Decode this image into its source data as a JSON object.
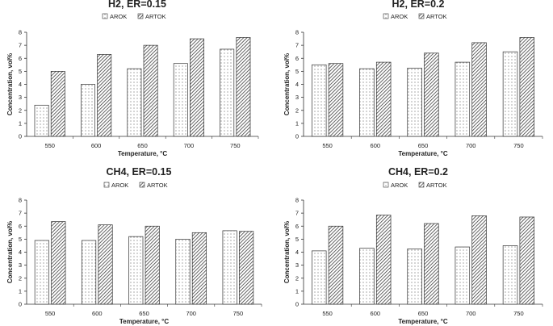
{
  "chart_data": [
    {
      "type": "bar",
      "title": "H2, ER=0.15",
      "categories": [
        "550",
        "600",
        "650",
        "700",
        "750"
      ],
      "series": [
        {
          "name": "AROK",
          "values": [
            2.4,
            4.0,
            5.2,
            5.6,
            6.7
          ],
          "pattern": "dots"
        },
        {
          "name": "ARTOK",
          "values": [
            5.0,
            6.3,
            7.0,
            7.5,
            7.6
          ],
          "pattern": "hatch"
        }
      ],
      "xlabel": "Temperature, °C",
      "ylabel": "Concentration, vol%",
      "ylim": [
        0,
        8
      ],
      "yticks": [
        "0",
        "1",
        "2",
        "3",
        "4",
        "5",
        "6",
        "7",
        "8"
      ],
      "legend": "top-center",
      "grid": false
    },
    {
      "type": "bar",
      "title": "H2, ER=0.2",
      "categories": [
        "550",
        "600",
        "650",
        "700",
        "750"
      ],
      "series": [
        {
          "name": "AROK",
          "values": [
            5.5,
            5.2,
            5.25,
            5.7,
            6.5
          ],
          "pattern": "dots"
        },
        {
          "name": "ARTOK",
          "values": [
            5.6,
            5.7,
            6.4,
            7.2,
            7.6
          ],
          "pattern": "hatch"
        }
      ],
      "xlabel": "Temperature, °C",
      "ylabel": "Concentration, vol%",
      "ylim": [
        0,
        8
      ],
      "yticks": [
        "0",
        "1",
        "2",
        "3",
        "4",
        "5",
        "6",
        "7",
        "8"
      ],
      "legend": "top-center",
      "grid": false
    },
    {
      "type": "bar",
      "title": "CH4, ER=0.15",
      "categories": [
        "550",
        "600",
        "650",
        "700",
        "750"
      ],
      "series": [
        {
          "name": "AROK",
          "values": [
            4.9,
            4.9,
            5.2,
            5.0,
            5.65
          ],
          "pattern": "dots"
        },
        {
          "name": "ARTOK",
          "values": [
            6.35,
            6.1,
            6.0,
            5.5,
            5.6
          ],
          "pattern": "hatch"
        }
      ],
      "xlabel": "Temperature, °C",
      "ylabel": "Concentration, vol%",
      "ylim": [
        0,
        8
      ],
      "yticks": [
        "0",
        "1",
        "2",
        "3",
        "4",
        "5",
        "6",
        "7",
        "8"
      ],
      "legend": "top-center",
      "grid": false
    },
    {
      "type": "bar",
      "title": "CH4, ER=0.2",
      "categories": [
        "550",
        "600",
        "650",
        "700",
        "750"
      ],
      "series": [
        {
          "name": "AROK",
          "values": [
            4.1,
            4.3,
            4.25,
            4.4,
            4.5
          ],
          "pattern": "dots"
        },
        {
          "name": "ARTOK",
          "values": [
            6.0,
            6.85,
            6.2,
            6.8,
            6.7
          ],
          "pattern": "hatch"
        }
      ],
      "xlabel": "Temperature, °C",
      "ylabel": "Concentration, vol%",
      "ylim": [
        0,
        8
      ],
      "yticks": [
        "0",
        "1",
        "2",
        "3",
        "4",
        "5",
        "6",
        "7",
        "8"
      ],
      "legend": "top-center",
      "grid": false
    }
  ],
  "colors": {
    "bar_stroke": "#333333",
    "axis": "#333333",
    "text": "#222222"
  }
}
